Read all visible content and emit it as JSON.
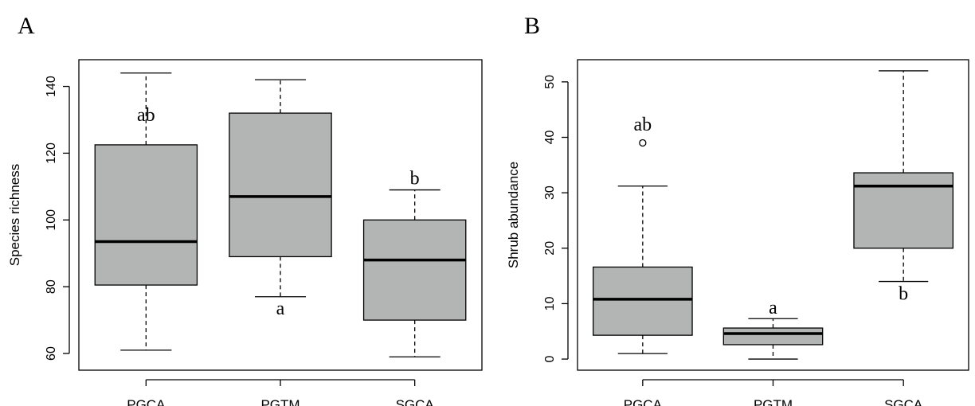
{
  "chart_data": [
    {
      "type": "boxplot",
      "panel_label": "A",
      "xlabel": "",
      "ylabel": "Species richness",
      "ylim": [
        55,
        148
      ],
      "yticks": [
        60,
        80,
        100,
        120,
        140
      ],
      "categories": [
        "PGCA",
        "PGTM",
        "SGCA"
      ],
      "box_color": "#b3b5b5",
      "boxes": [
        {
          "category": "PGCA",
          "min": 61,
          "q1": 80.5,
          "median": 93.5,
          "q3": 122.5,
          "max": 144,
          "outliers": [],
          "label": "ab",
          "label_y": 131
        },
        {
          "category": "PGTM",
          "min": 77,
          "q1": 89,
          "median": 107,
          "q3": 132,
          "max": 142,
          "outliers": [],
          "label": "a",
          "label_y": 73
        },
        {
          "category": "SGCA",
          "min": 59,
          "q1": 70,
          "median": 88,
          "q3": 100,
          "max": 109,
          "outliers": [],
          "label": "b",
          "label_y": 112
        }
      ]
    },
    {
      "type": "boxplot",
      "panel_label": "B",
      "xlabel": "",
      "ylabel": "Shrub  abundance",
      "ylim": [
        -2,
        54
      ],
      "yticks": [
        0,
        10,
        20,
        30,
        40,
        50
      ],
      "categories": [
        "PGCA",
        "PGTM",
        "SGCA"
      ],
      "box_color": "#b3b5b5",
      "boxes": [
        {
          "category": "PGCA",
          "min": 1,
          "q1": 4.3,
          "median": 10.8,
          "q3": 16.6,
          "max": 31.2,
          "outliers": [
            39
          ],
          "label": "ab",
          "label_y": 42
        },
        {
          "category": "PGTM",
          "min": 0,
          "q1": 2.6,
          "median": 4.6,
          "q3": 5.6,
          "max": 7.3,
          "outliers": [],
          "label": "a",
          "label_y": 9
        },
        {
          "category": "SGCA",
          "min": 14,
          "q1": 20,
          "median": 31.2,
          "q3": 33.6,
          "max": 52,
          "outliers": [],
          "label": "b",
          "label_y": 11.5
        }
      ]
    }
  ]
}
